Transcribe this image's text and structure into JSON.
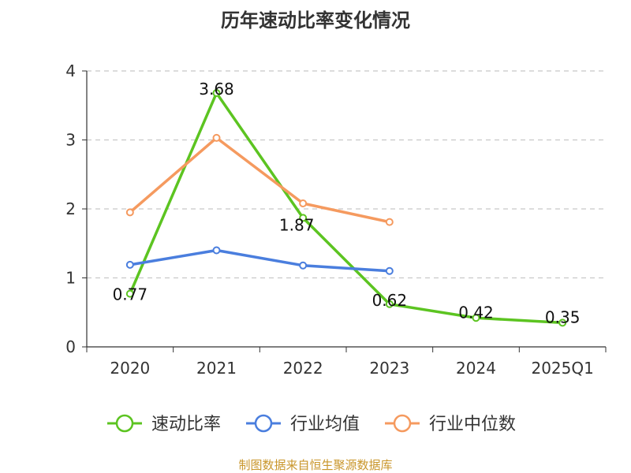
{
  "chart_data": {
    "type": "line",
    "title": "历年速动比率变化情况",
    "categories": [
      "2020",
      "2021",
      "2022",
      "2023",
      "2024",
      "2025Q1"
    ],
    "ylim": [
      0,
      4
    ],
    "yticks": [
      "0",
      "1",
      "2",
      "3",
      "4"
    ],
    "grid": true,
    "legend_position": "bottom",
    "series": [
      {
        "name": "速动比率",
        "color": "#5cc421",
        "values": [
          0.77,
          3.68,
          1.87,
          0.62,
          0.42,
          0.35
        ],
        "labels": [
          "0.77",
          "3.68",
          "1.87",
          "0.62",
          "0.42",
          "0.35"
        ]
      },
      {
        "name": "行业均值",
        "color": "#4a7ede",
        "values": [
          1.19,
          1.4,
          1.18,
          1.1,
          null,
          null
        ]
      },
      {
        "name": "行业中位数",
        "color": "#f59a5f",
        "values": [
          1.95,
          3.03,
          2.08,
          1.81,
          null,
          null
        ]
      }
    ]
  },
  "source": "制图数据来自恒生聚源数据库"
}
